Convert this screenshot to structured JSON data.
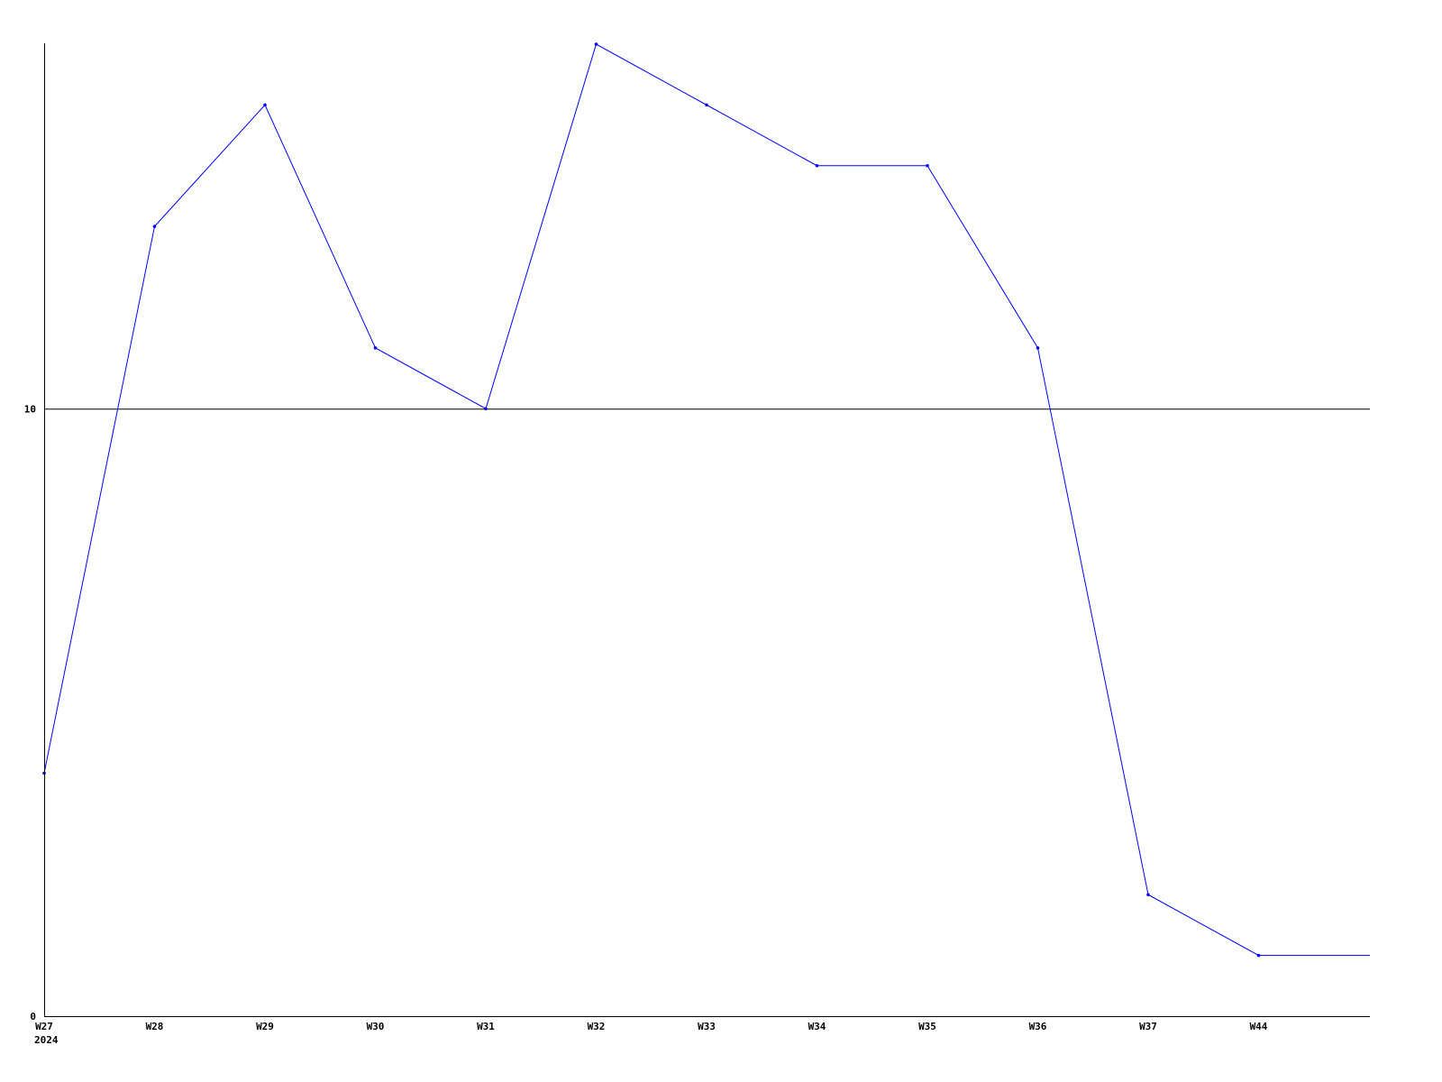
{
  "chart_data": {
    "type": "line",
    "title": "",
    "xlabel": "",
    "ylabel": "",
    "categories": [
      "W27",
      "W28",
      "W29",
      "W30",
      "W31",
      "W32",
      "W33",
      "W34",
      "W35",
      "W36",
      "W37",
      "W44"
    ],
    "x_sublabel": "2024",
    "series": [
      {
        "values": [
          4,
          13,
          15,
          11,
          10,
          16,
          15,
          14,
          14,
          11,
          2,
          1
        ],
        "color": "#0000ff"
      }
    ],
    "ylim": [
      0,
      16
    ],
    "yticks": [
      0,
      10
    ],
    "reference_line": 10,
    "grid": false,
    "legend": "none"
  }
}
